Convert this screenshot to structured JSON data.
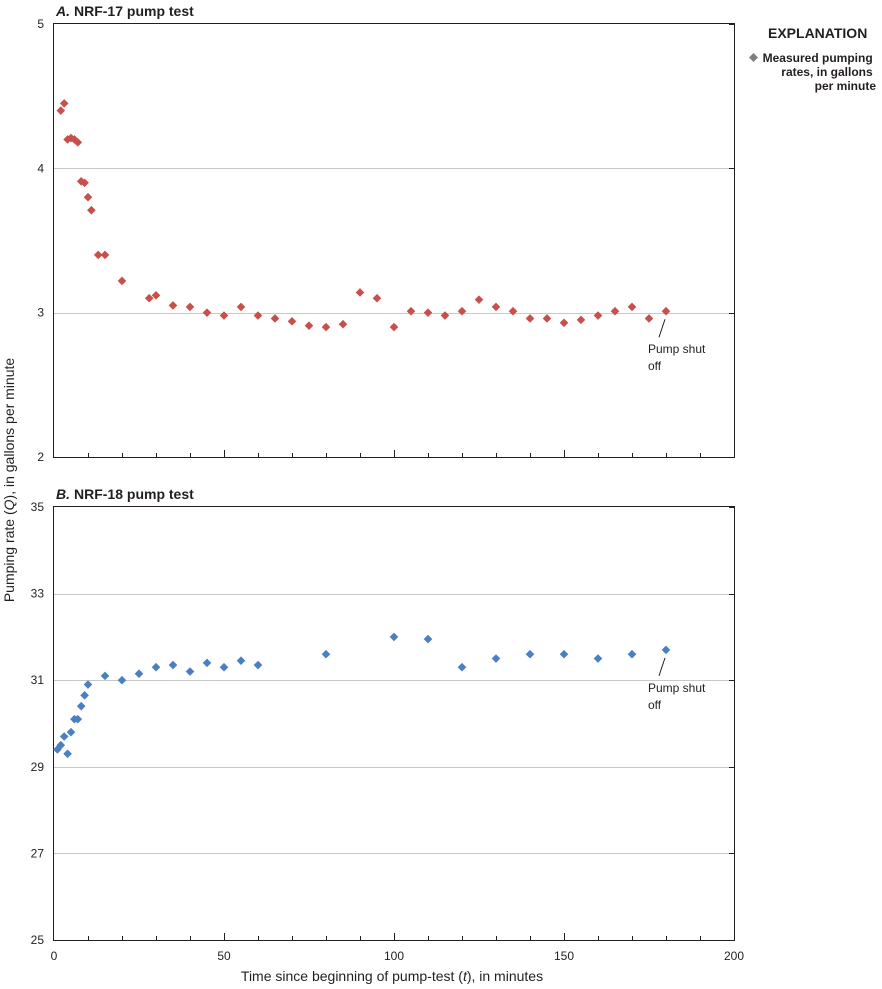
{
  "chart_data": [
    {
      "type": "scatter",
      "panel_letter": "A.",
      "title": "NRF-17 pump test",
      "ylim": [
        2,
        5
      ],
      "yticks": [
        2,
        3,
        4,
        5
      ],
      "xlim": [
        0,
        200
      ],
      "xticks": [
        0,
        50,
        100,
        150,
        200
      ],
      "grid": true,
      "marker_color": "#c8504b",
      "annotation": [
        "Pump shut",
        "off"
      ],
      "series": [
        {
          "x": [
            2,
            3,
            4,
            5,
            6,
            7,
            8,
            9,
            10,
            11,
            13,
            15,
            20,
            28,
            30,
            35,
            40,
            45,
            50,
            55,
            60,
            65,
            70,
            75,
            80,
            85,
            90,
            95,
            100,
            105,
            110,
            115,
            120,
            125,
            130,
            135,
            140,
            145,
            150,
            155,
            160,
            165,
            170,
            175,
            180
          ],
          "y": [
            4.4,
            4.45,
            4.2,
            4.21,
            4.2,
            4.18,
            3.91,
            3.9,
            3.8,
            3.71,
            3.4,
            3.4,
            3.22,
            3.1,
            3.12,
            3.05,
            3.04,
            3.0,
            2.98,
            3.04,
            2.98,
            2.96,
            2.94,
            2.91,
            2.9,
            2.92,
            3.14,
            3.1,
            2.9,
            3.01,
            3.0,
            2.98,
            3.01,
            3.09,
            3.04,
            3.01,
            2.96,
            2.96,
            2.93,
            2.95,
            2.98,
            3.01,
            3.04,
            2.96,
            3.01
          ]
        }
      ]
    },
    {
      "type": "scatter",
      "panel_letter": "B.",
      "title": "NRF-18 pump test",
      "ylim": [
        25,
        35
      ],
      "yticks": [
        25,
        27,
        29,
        31,
        33,
        35
      ],
      "xlim": [
        0,
        200
      ],
      "xticks": [
        0,
        50,
        100,
        150,
        200
      ],
      "grid": true,
      "marker_color": "#4a7fc1",
      "annotation": [
        "Pump shut",
        "off"
      ],
      "series": [
        {
          "x": [
            1,
            2,
            3,
            4,
            5,
            6,
            7,
            8,
            9,
            10,
            15,
            20,
            25,
            30,
            35,
            40,
            45,
            50,
            55,
            60,
            80,
            100,
            110,
            120,
            130,
            140,
            150,
            160,
            170,
            180
          ],
          "y": [
            29.4,
            29.5,
            29.7,
            29.3,
            29.8,
            30.1,
            30.1,
            30.4,
            30.65,
            30.9,
            31.1,
            31.0,
            31.15,
            31.3,
            31.35,
            31.2,
            31.4,
            31.3,
            31.45,
            31.35,
            31.6,
            32.0,
            31.95,
            31.3,
            31.5,
            31.6,
            31.6,
            31.5,
            31.6,
            31.7
          ]
        }
      ]
    }
  ],
  "axes": {
    "ylabel": [
      "Pumping rate (",
      "Q",
      "), in gallons per minute"
    ],
    "xlabel": [
      "Time since beginning of pump-test (",
      "t",
      "), in minutes"
    ]
  },
  "legend": {
    "title": "EXPLANATION",
    "marker_color": "#7f7f7f",
    "lines": [
      "Measured pumping",
      "rates, in gallons",
      "per minute"
    ]
  }
}
